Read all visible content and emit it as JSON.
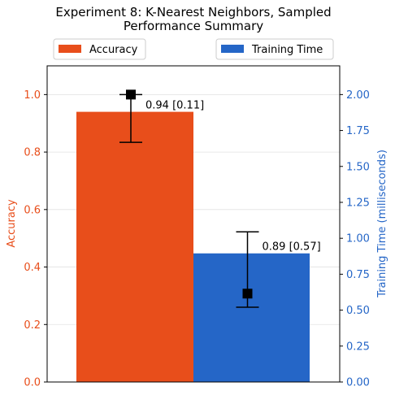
{
  "chart_data": {
    "type": "bar",
    "title_lines": [
      "Experiment 8: K-Nearest Neighbors, Sampled",
      "Performance Summary"
    ],
    "left_axis": {
      "label": "Accuracy",
      "ylim": [
        0,
        1.1
      ],
      "ticks": [
        0.0,
        0.2,
        0.4,
        0.6,
        0.8,
        1.0
      ],
      "tick_labels": [
        "0.0",
        "0.2",
        "0.4",
        "0.6",
        "0.8",
        "1.0"
      ],
      "color": "#e84e1b"
    },
    "right_axis": {
      "label": "Training Time (milliseconds)",
      "ylim": [
        0,
        2.2
      ],
      "ticks": [
        0.0,
        0.25,
        0.5,
        0.75,
        1.0,
        1.25,
        1.5,
        1.75,
        2.0
      ],
      "tick_labels": [
        "0.00",
        "0.25",
        "0.50",
        "0.75",
        "1.00",
        "1.25",
        "1.50",
        "1.75",
        "2.00"
      ],
      "color": "#2566c7"
    },
    "series": [
      {
        "name": "Accuracy",
        "axis": "left",
        "bar_value": 0.94,
        "marker_value": 1.0,
        "err_low": 0.834,
        "err_high": 1.0,
        "label": "0.94 [0.11]",
        "color": "#e84e1b"
      },
      {
        "name": "Training Time",
        "axis": "right",
        "bar_value": 0.895,
        "marker_value": 0.615,
        "err_low": 0.52,
        "err_high": 1.045,
        "label": "0.89 [0.57]",
        "color": "#2566c7"
      }
    ],
    "grid": true,
    "legend": [
      "top-left",
      "top-right"
    ]
  }
}
